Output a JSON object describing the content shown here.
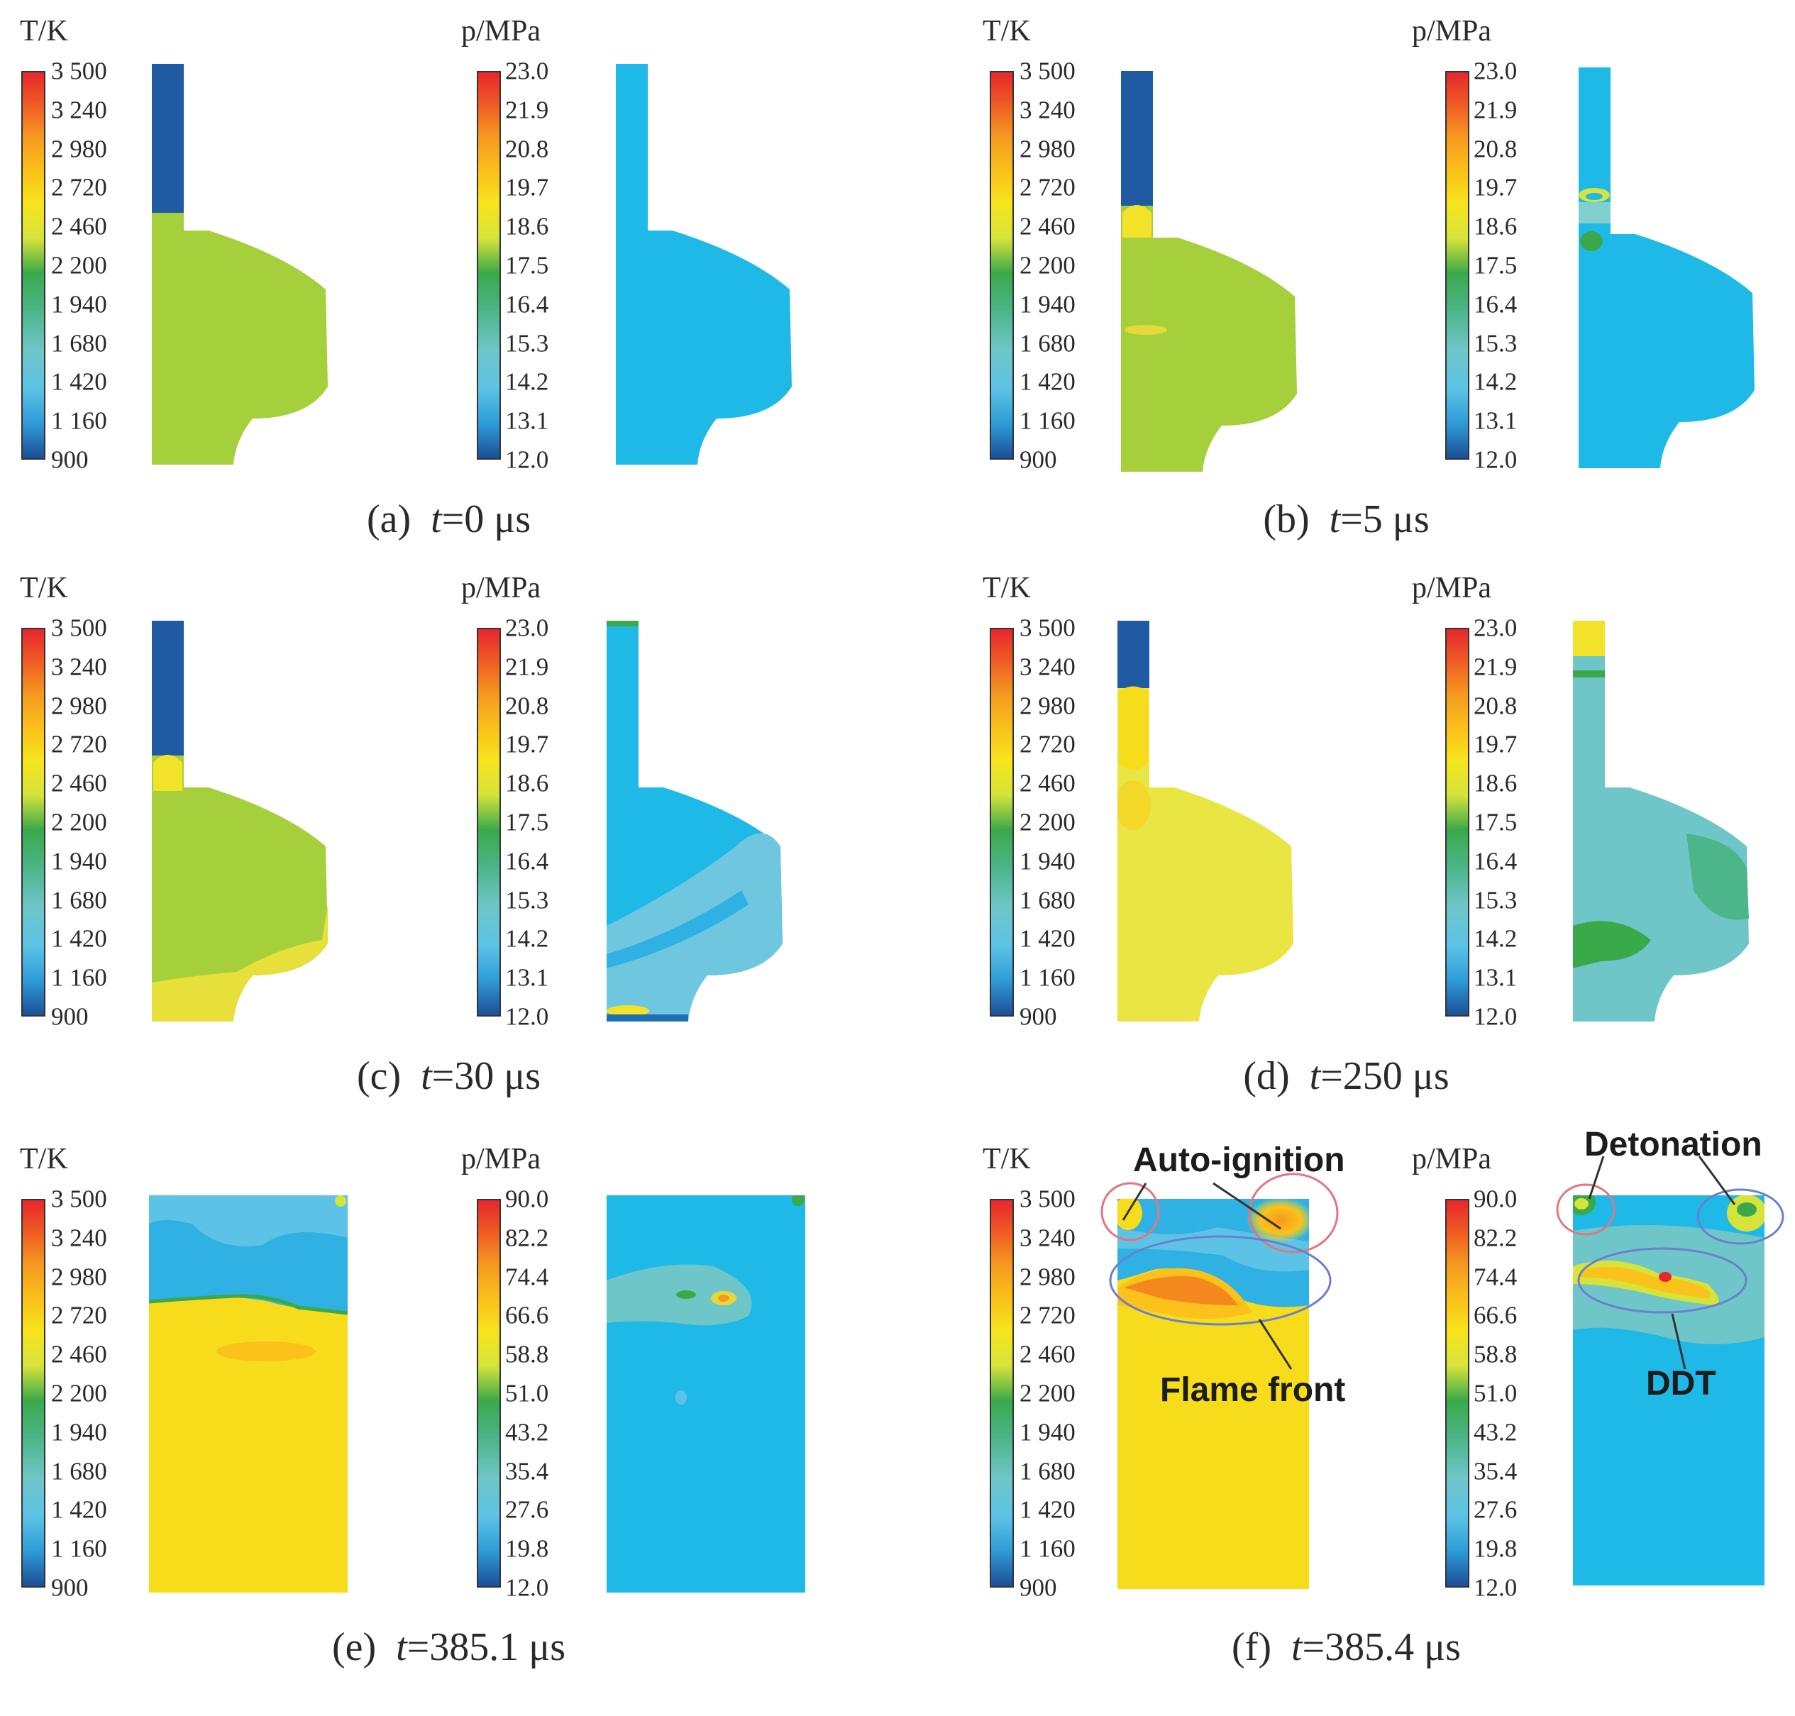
{
  "temperature_colorbar": {
    "label": "T/K",
    "ticks": [
      "3 500",
      "3 240",
      "2 980",
      "2 720",
      "2 460",
      "2 200",
      "1 940",
      "1 680",
      "1 420",
      "1 160",
      "900"
    ]
  },
  "pressure_colorbar_low": {
    "label": "p/MPa",
    "ticks": [
      "23.0",
      "21.9",
      "20.8",
      "19.7",
      "18.6",
      "17.5",
      "16.4",
      "15.3",
      "14.2",
      "13.1",
      "12.0"
    ]
  },
  "pressure_colorbar_high": {
    "label": "p/MPa",
    "ticks": [
      "90.0",
      "82.2",
      "74.4",
      "66.6",
      "58.8",
      "51.0",
      "43.2",
      "35.4",
      "27.6",
      "19.8",
      "12.0"
    ]
  },
  "colormap": [
    "#e8262d",
    "#ee5a24",
    "#f59a1f",
    "#fac21a",
    "#f7e41c",
    "#d5e33a",
    "#8cc63f",
    "#3aa94a",
    "#4cb58a",
    "#6fc6c8",
    "#5cc3e6",
    "#2e9bd6",
    "#1f6fb4",
    "#1c4f98"
  ],
  "panels": [
    {
      "letter": "(a)",
      "time_var": "t",
      "time_value": "=0 μs"
    },
    {
      "letter": "(b)",
      "time_var": "t",
      "time_value": "=5 μs"
    },
    {
      "letter": "(c)",
      "time_var": "t",
      "time_value": "=30 μs"
    },
    {
      "letter": "(d)",
      "time_var": "t",
      "time_value": "=250 μs"
    },
    {
      "letter": "(e)",
      "time_var": "t",
      "time_value": "=385.1 μs"
    },
    {
      "letter": "(f)",
      "time_var": "t",
      "time_value": "=385.4 μs"
    }
  ],
  "annotations": {
    "auto_ignition": "Auto-ignition",
    "flame_front": "Flame front",
    "detonation": "Detonation",
    "ddt": "DDT"
  }
}
